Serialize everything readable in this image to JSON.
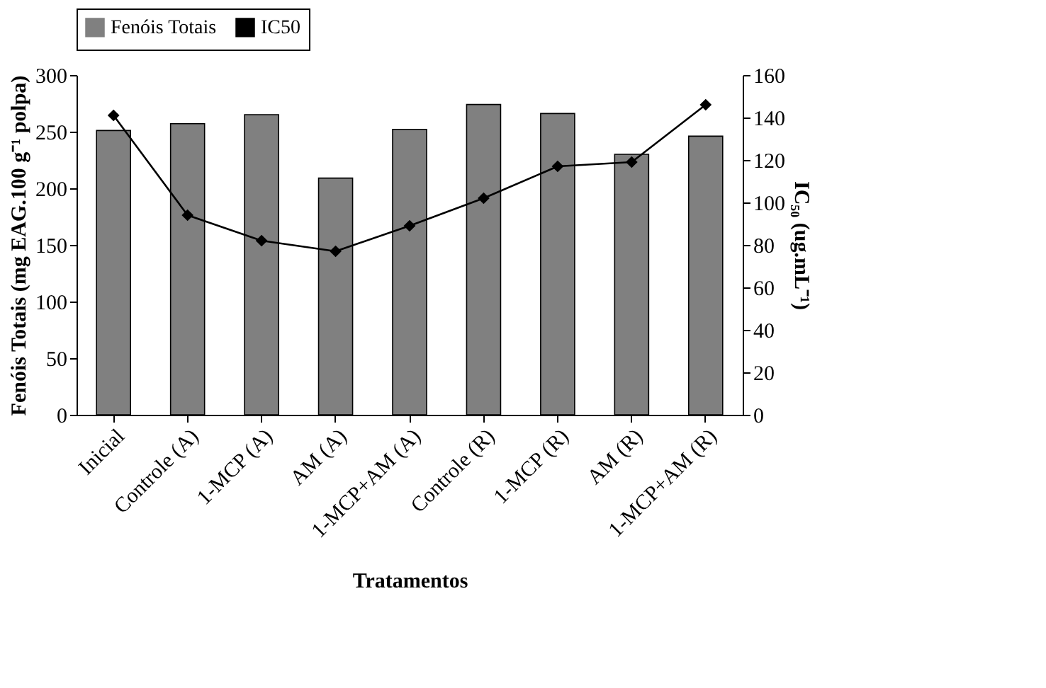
{
  "chart_data": {
    "type": "bar",
    "xlabel": "Tratamentos",
    "ylabel": "Fenóis Totais (mg EAG.100 g⁻¹ polpa)",
    "y2label": "IC₅₀ (ug.mL⁻¹)",
    "categories": [
      "Inicial",
      "Controle (A)",
      "1-MCP (A)",
      "AM (A)",
      "1-MCP+AM (A)",
      "Controle (R)",
      "1-MCP (R)",
      "AM (R)",
      "1-MCP+AM (R)"
    ],
    "series": [
      {
        "name": "Fenóis Totais",
        "color": "#808080",
        "values": [
          251,
          257,
          265,
          209,
          252,
          274,
          266,
          230,
          246
        ]
      },
      {
        "name": "IC50",
        "type": "line",
        "axis": "y2",
        "color": "#000000",
        "marker": "diamond",
        "values": [
          141,
          94,
          82,
          77,
          89,
          102,
          117,
          119,
          146
        ]
      }
    ],
    "ylim": [
      0,
      300
    ],
    "yticks": [
      0,
      50,
      100,
      150,
      200,
      250,
      300
    ],
    "y2lim": [
      0,
      160
    ],
    "y2ticks": [
      0,
      20,
      40,
      60,
      80,
      100,
      120,
      140,
      160
    ],
    "grid": false,
    "legend": "top"
  }
}
